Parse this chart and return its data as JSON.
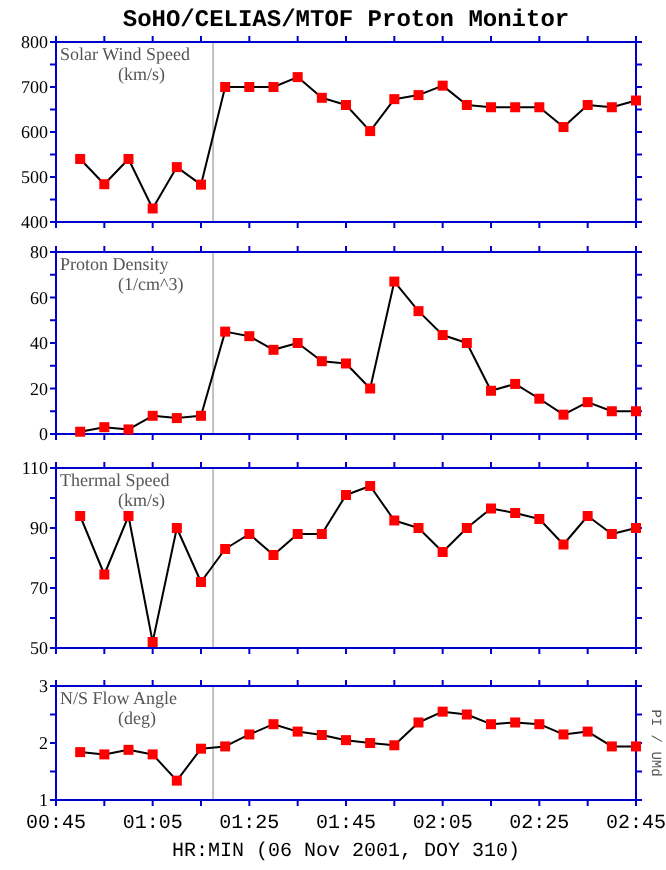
{
  "chart_data": [
    {
      "type": "line",
      "title": "Solar Wind Speed",
      "subtitle": "(km/s)",
      "annotations": [
        "SoHO/CELIAS/MTOF    Proton Monitor"
      ],
      "marker": "square",
      "line_style": "solid",
      "tick_labels": "y",
      "x": [
        "2001-11-06T00:50",
        "2001-11-06T00:55",
        "2001-11-06T01:00",
        "2001-11-06T01:05",
        "2001-11-06T01:10",
        "2001-11-06T01:15",
        "2001-11-06T01:20",
        "2001-11-06T01:25",
        "2001-11-06T01:30",
        "2001-11-06T01:35",
        "2001-11-06T01:40",
        "2001-11-06T01:45",
        "2001-11-06T01:50",
        "2001-11-06T01:55",
        "2001-11-06T02:00",
        "2001-11-06T02:05",
        "2001-11-06T02:10",
        "2001-11-06T02:15",
        "2001-11-06T02:20",
        "2001-11-06T02:25",
        "2001-11-06T02:30",
        "2001-11-06T02:35",
        "2001-11-06T02:40",
        "2001-11-06T02:45"
      ],
      "series": [
        {
          "color": "#ff0000",
          "values": [
            540,
            484,
            540,
            430,
            522,
            483,
            700,
            700,
            700,
            722,
            676,
            660,
            602,
            673,
            682,
            703,
            660,
            655,
            655,
            655,
            611,
            660,
            655,
            670
          ]
        }
      ],
      "xlim": [
        "2001-11-06T00:45",
        "2001-11-06T02:45"
      ],
      "xticks": [
        {
          "value": "2001-11-06T00:45",
          "label": null
        },
        {
          "value": "2001-11-06T00:55",
          "label": null
        },
        {
          "value": "2001-11-06T01:05",
          "label": null
        },
        {
          "value": "2001-11-06T01:15",
          "label": null
        },
        {
          "value": "2001-11-06T01:25",
          "label": null
        },
        {
          "value": "2001-11-06T01:35",
          "label": null
        },
        {
          "value": "2001-11-06T01:45",
          "label": null
        },
        {
          "value": "2001-11-06T01:55",
          "label": null
        },
        {
          "value": "2001-11-06T02:05",
          "label": null
        },
        {
          "value": "2001-11-06T02:15",
          "label": null
        },
        {
          "value": "2001-11-06T02:25",
          "label": null
        },
        {
          "value": "2001-11-06T02:35",
          "label": null
        },
        {
          "value": "2001-11-06T02:45",
          "label": null
        }
      ],
      "ylim": [
        400,
        800
      ],
      "yticks": [
        400,
        {
          "value": 450,
          "label": null
        },
        500,
        {
          "value": 550,
          "label": null
        },
        600,
        {
          "value": 650,
          "label": null
        },
        700,
        {
          "value": 750,
          "label": null
        },
        800
      ],
      "ref_lines": [
        {
          "axis": "x",
          "value": "2001-11-06T01:17:30",
          "color": "#c0c0c0"
        }
      ]
    },
    {
      "type": "line",
      "title": "Proton Density",
      "subtitle": "(1/cm^3)",
      "marker": "square",
      "line_style": "solid",
      "tick_labels": "y",
      "x": [
        "2001-11-06T00:50",
        "2001-11-06T00:55",
        "2001-11-06T01:00",
        "2001-11-06T01:05",
        "2001-11-06T01:10",
        "2001-11-06T01:15",
        "2001-11-06T01:20",
        "2001-11-06T01:25",
        "2001-11-06T01:30",
        "2001-11-06T01:35",
        "2001-11-06T01:40",
        "2001-11-06T01:45",
        "2001-11-06T01:50",
        "2001-11-06T01:55",
        "2001-11-06T02:00",
        "2001-11-06T02:05",
        "2001-11-06T02:10",
        "2001-11-06T02:15",
        "2001-11-06T02:20",
        "2001-11-06T02:25",
        "2001-11-06T02:30",
        "2001-11-06T02:35",
        "2001-11-06T02:40",
        "2001-11-06T02:45"
      ],
      "series": [
        {
          "color": "#ff0000",
          "values": [
            1,
            3,
            2,
            8,
            7,
            8,
            45,
            43,
            37,
            40,
            32,
            31,
            20,
            67,
            54,
            43.5,
            40,
            19,
            22,
            15.5,
            8.5,
            14,
            10,
            10
          ]
        }
      ],
      "xlim": [
        "2001-11-06T00:45",
        "2001-11-06T02:45"
      ],
      "xticks": [
        {
          "value": "2001-11-06T00:45",
          "label": null
        },
        {
          "value": "2001-11-06T00:55",
          "label": null
        },
        {
          "value": "2001-11-06T01:05",
          "label": null
        },
        {
          "value": "2001-11-06T01:15",
          "label": null
        },
        {
          "value": "2001-11-06T01:25",
          "label": null
        },
        {
          "value": "2001-11-06T01:35",
          "label": null
        },
        {
          "value": "2001-11-06T01:45",
          "label": null
        },
        {
          "value": "2001-11-06T01:55",
          "label": null
        },
        {
          "value": "2001-11-06T02:05",
          "label": null
        },
        {
          "value": "2001-11-06T02:15",
          "label": null
        },
        {
          "value": "2001-11-06T02:25",
          "label": null
        },
        {
          "value": "2001-11-06T02:35",
          "label": null
        },
        {
          "value": "2001-11-06T02:45",
          "label": null
        }
      ],
      "ylim": [
        0,
        80
      ],
      "yticks": [
        0,
        {
          "value": 10,
          "label": null
        },
        20,
        {
          "value": 30,
          "label": null
        },
        40,
        {
          "value": 50,
          "label": null
        },
        60,
        {
          "value": 70,
          "label": null
        },
        80
      ],
      "ref_lines": [
        {
          "axis": "x",
          "value": "2001-11-06T01:17:30",
          "color": "#c0c0c0"
        }
      ]
    },
    {
      "type": "line",
      "title": "Thermal Speed",
      "subtitle": "(km/s)",
      "marker": "square",
      "line_style": "solid",
      "tick_labels": "y",
      "x": [
        "2001-11-06T00:50",
        "2001-11-06T00:55",
        "2001-11-06T01:00",
        "2001-11-06T01:05",
        "2001-11-06T01:10",
        "2001-11-06T01:15",
        "2001-11-06T01:20",
        "2001-11-06T01:25",
        "2001-11-06T01:30",
        "2001-11-06T01:35",
        "2001-11-06T01:40",
        "2001-11-06T01:45",
        "2001-11-06T01:50",
        "2001-11-06T01:55",
        "2001-11-06T02:00",
        "2001-11-06T02:05",
        "2001-11-06T02:10",
        "2001-11-06T02:15",
        "2001-11-06T02:20",
        "2001-11-06T02:25",
        "2001-11-06T02:30",
        "2001-11-06T02:35",
        "2001-11-06T02:40",
        "2001-11-06T02:45"
      ],
      "series": [
        {
          "color": "#ff0000",
          "values": [
            94,
            74.5,
            94,
            52,
            90,
            72,
            83,
            88,
            81,
            88,
            88,
            101,
            104,
            92.5,
            90,
            82,
            90,
            96.5,
            95,
            93,
            84.5,
            94,
            88,
            90
          ]
        }
      ],
      "xlim": [
        "2001-11-06T00:45",
        "2001-11-06T02:45"
      ],
      "xticks": [
        {
          "value": "2001-11-06T00:45",
          "label": null
        },
        {
          "value": "2001-11-06T00:55",
          "label": null
        },
        {
          "value": "2001-11-06T01:05",
          "label": null
        },
        {
          "value": "2001-11-06T01:15",
          "label": null
        },
        {
          "value": "2001-11-06T01:25",
          "label": null
        },
        {
          "value": "2001-11-06T01:35",
          "label": null
        },
        {
          "value": "2001-11-06T01:45",
          "label": null
        },
        {
          "value": "2001-11-06T01:55",
          "label": null
        },
        {
          "value": "2001-11-06T02:05",
          "label": null
        },
        {
          "value": "2001-11-06T02:15",
          "label": null
        },
        {
          "value": "2001-11-06T02:25",
          "label": null
        },
        {
          "value": "2001-11-06T02:35",
          "label": null
        },
        {
          "value": "2001-11-06T02:45",
          "label": null
        }
      ],
      "ylim": [
        50,
        110
      ],
      "yticks": [
        50,
        {
          "value": 60,
          "label": null
        },
        70,
        {
          "value": 80,
          "label": null
        },
        90,
        {
          "value": 100,
          "label": null
        },
        110
      ],
      "ref_lines": [
        {
          "axis": "x",
          "value": "2001-11-06T01:17:30",
          "color": "#c0c0c0"
        }
      ]
    },
    {
      "type": "line",
      "title": "N/S Flow Angle",
      "subtitle": "(deg)",
      "xlabel": "HR:MIN (06 Nov 2001, DOY 310)",
      "annotations": [
        "PI / UMd"
      ],
      "marker": "square",
      "line_style": "solid",
      "x": [
        "2001-11-06T00:50",
        "2001-11-06T00:55",
        "2001-11-06T01:00",
        "2001-11-06T01:05",
        "2001-11-06T01:10",
        "2001-11-06T01:15",
        "2001-11-06T01:20",
        "2001-11-06T01:25",
        "2001-11-06T01:30",
        "2001-11-06T01:35",
        "2001-11-06T01:40",
        "2001-11-06T01:45",
        "2001-11-06T01:50",
        "2001-11-06T01:55",
        "2001-11-06T02:00",
        "2001-11-06T02:05",
        "2001-11-06T02:10",
        "2001-11-06T02:15",
        "2001-11-06T02:20",
        "2001-11-06T02:25",
        "2001-11-06T02:30",
        "2001-11-06T02:35",
        "2001-11-06T02:40",
        "2001-11-06T02:45"
      ],
      "series": [
        {
          "color": "#ff0000",
          "values": [
            1.84,
            1.8,
            1.88,
            1.8,
            1.34,
            1.9,
            1.94,
            2.15,
            2.33,
            2.2,
            2.14,
            2.05,
            2.0,
            1.96,
            2.36,
            2.55,
            2.5,
            2.33,
            2.36,
            2.33,
            2.15,
            2.2,
            1.94,
            1.94
          ]
        }
      ],
      "xlim": [
        "2001-11-06T00:45",
        "2001-11-06T02:45"
      ],
      "xticks": [
        {
          "value": "2001-11-06T00:45",
          "label": "00:45"
        },
        {
          "value": "2001-11-06T00:55",
          "label": null
        },
        {
          "value": "2001-11-06T01:05",
          "label": "01:05"
        },
        {
          "value": "2001-11-06T01:15",
          "label": null
        },
        {
          "value": "2001-11-06T01:25",
          "label": "01:25"
        },
        {
          "value": "2001-11-06T01:35",
          "label": null
        },
        {
          "value": "2001-11-06T01:45",
          "label": "01:45"
        },
        {
          "value": "2001-11-06T01:55",
          "label": null
        },
        {
          "value": "2001-11-06T02:05",
          "label": "02:05"
        },
        {
          "value": "2001-11-06T02:15",
          "label": null
        },
        {
          "value": "2001-11-06T02:25",
          "label": "02:25"
        },
        {
          "value": "2001-11-06T02:35",
          "label": null
        },
        {
          "value": "2001-11-06T02:45",
          "label": "02:45"
        }
      ],
      "ylim": [
        1,
        3
      ],
      "yticks": [
        1,
        {
          "value": 1.5,
          "label": null
        },
        2,
        {
          "value": 2.5,
          "label": null
        },
        3
      ],
      "ref_lines": [
        {
          "axis": "x",
          "value": "2001-11-06T01:17:30",
          "color": "#c0c0c0"
        }
      ]
    }
  ]
}
